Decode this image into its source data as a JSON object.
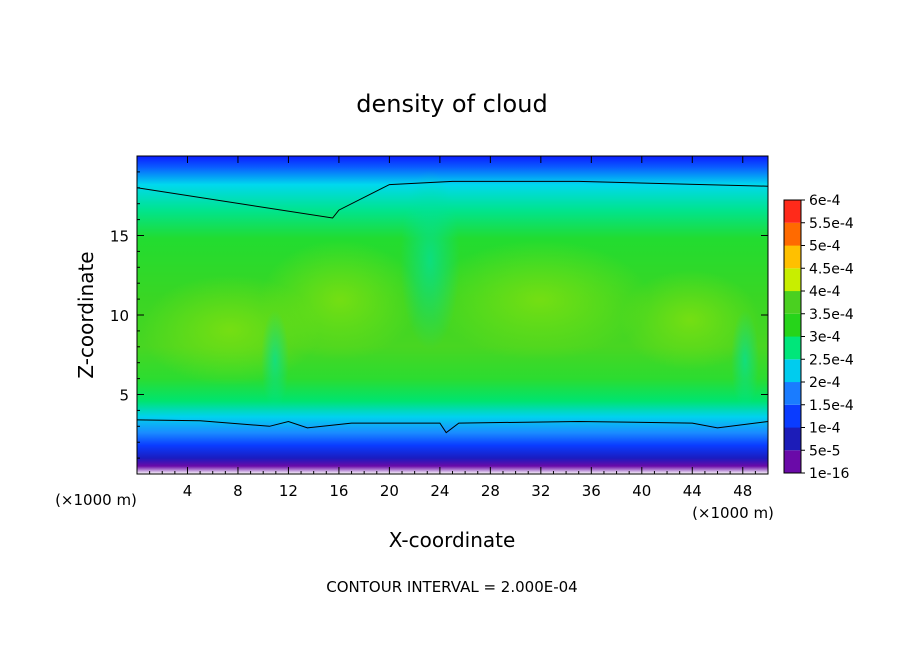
{
  "chart_data": {
    "type": "heatmap",
    "title": "density of cloud",
    "xlabel": "X-coordinate",
    "ylabel": "Z-coordinate",
    "x_unit_left": "(×1000 m)",
    "x_unit_right": "(×1000 m)",
    "x_ticks": [
      4,
      8,
      12,
      16,
      20,
      24,
      28,
      32,
      36,
      40,
      44,
      48
    ],
    "y_ticks": [
      5,
      10,
      15
    ],
    "xlim": [
      0,
      50
    ],
    "ylim": [
      0,
      20
    ],
    "footer": "CONTOUR INTERVAL = 2.000E-04",
    "contour_interval": 0.0002,
    "colorbar": {
      "levels": [
        "1e-16",
        "5e-5",
        "1e-4",
        "1.5e-4",
        "2e-4",
        "2.5e-4",
        "3e-4",
        "3.5e-4",
        "4e-4",
        "4.5e-4",
        "5e-4",
        "5.5e-4",
        "6e-4"
      ],
      "colors": [
        "#6a0aa8",
        "#1c1cb8",
        "#0a3cff",
        "#1a7cff",
        "#00ccee",
        "#00e67a",
        "#26d41a",
        "#4ad020",
        "#c8ee00",
        "#ffc000",
        "#ff6a00",
        "#ff2a1a",
        "#ff8c9a"
      ]
    },
    "contour_lines": [
      {
        "level": 0.0002,
        "points": [
          [
            0,
            18.0
          ],
          [
            15.5,
            16.1
          ],
          [
            16,
            16.6
          ],
          [
            20,
            18.2
          ],
          [
            25,
            18.4
          ],
          [
            35,
            18.4
          ],
          [
            50,
            18.1
          ]
        ]
      },
      {
        "level": 0.0002,
        "points": [
          [
            0,
            3.4
          ],
          [
            5,
            3.35
          ],
          [
            10.5,
            3.0
          ],
          [
            12,
            3.3
          ],
          [
            13.5,
            2.9
          ],
          [
            17,
            3.2
          ],
          [
            24,
            3.2
          ],
          [
            24.5,
            2.6
          ],
          [
            25.5,
            3.2
          ],
          [
            35,
            3.3
          ],
          [
            44,
            3.2
          ],
          [
            46,
            2.9
          ],
          [
            50,
            3.3
          ]
        ]
      }
    ]
  }
}
